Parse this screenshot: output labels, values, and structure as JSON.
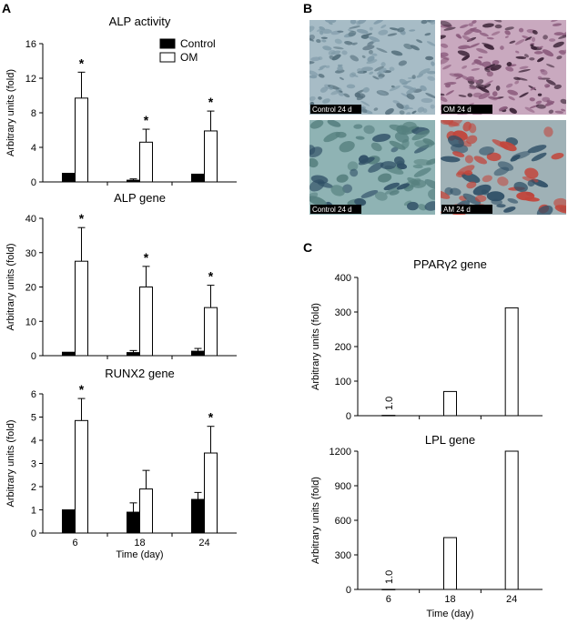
{
  "panels": {
    "a": "A",
    "b": "B",
    "c": "C"
  },
  "legend": {
    "control": "Control",
    "om": "OM"
  },
  "photos": [
    {
      "label": "Control 24 d",
      "base": "#a7bcc6",
      "cell": "#7f9aa8",
      "dot": "#556f7c"
    },
    {
      "label": "OM 24 d",
      "base": "#c9a9bf",
      "cell": "#8a5a7c",
      "dot": "#3a2236"
    },
    {
      "label": "Control 24 d",
      "base": "#8fb3b4",
      "cell": "#56807f",
      "dot": "#2f4f66"
    },
    {
      "label": "AM 24 d",
      "base": "#9fb1b6",
      "cell": "#c2463c",
      "dot": "#2f4f66"
    }
  ],
  "chart_data": [
    {
      "type": "bar",
      "title": "ALP activity",
      "ylabel": "Arbitrary units (fold)",
      "xlabel": "",
      "categories": [
        "6",
        "18",
        "24"
      ],
      "ylim": [
        0,
        16
      ],
      "yticks": [
        0,
        4,
        8,
        12,
        16
      ],
      "legend": "top-right",
      "series": [
        {
          "name": "Control",
          "values": [
            1.0,
            0.2,
            0.9
          ],
          "errors": [
            0,
            0.15,
            0
          ]
        },
        {
          "name": "OM",
          "values": [
            9.7,
            4.6,
            5.9
          ],
          "errors": [
            3.0,
            1.5,
            2.3
          ]
        }
      ],
      "significant": [
        true,
        true,
        true
      ]
    },
    {
      "type": "bar",
      "title": "ALP gene",
      "ylabel": "Arbitrary units (fold)",
      "xlabel": "",
      "categories": [
        "6",
        "18",
        "24"
      ],
      "ylim": [
        0,
        40
      ],
      "yticks": [
        0,
        10,
        20,
        30,
        40
      ],
      "series": [
        {
          "name": "Control",
          "values": [
            1.0,
            0.9,
            1.3
          ],
          "errors": [
            0,
            0.6,
            0.8
          ]
        },
        {
          "name": "OM",
          "values": [
            27.5,
            20.0,
            14.0
          ],
          "errors": [
            9.8,
            6.0,
            6.5
          ]
        }
      ],
      "significant": [
        true,
        true,
        true
      ]
    },
    {
      "type": "bar",
      "title": "RUNX2 gene",
      "ylabel": "Arbitrary units (fold)",
      "xlabel": "Time (day)",
      "categories": [
        "6",
        "18",
        "24"
      ],
      "ylim": [
        0,
        6
      ],
      "yticks": [
        0,
        1,
        2,
        3,
        4,
        5,
        6
      ],
      "series": [
        {
          "name": "Control",
          "values": [
            1.0,
            0.9,
            1.45
          ],
          "errors": [
            0,
            0.4,
            0.3
          ]
        },
        {
          "name": "OM",
          "values": [
            4.85,
            1.9,
            3.45
          ],
          "errors": [
            0.95,
            0.8,
            1.15
          ]
        }
      ],
      "significant": [
        true,
        false,
        true
      ]
    },
    {
      "type": "bar",
      "title": "PPARγ2 gene",
      "ylabel": "Arbitrary units (fold)",
      "xlabel": "",
      "categories": [
        "6",
        "18",
        "24"
      ],
      "ylim": [
        0,
        400
      ],
      "yticks": [
        0,
        100,
        200,
        300,
        400
      ],
      "series": [
        {
          "values": [
            1.0,
            70,
            312
          ],
          "data_labels": [
            "1.0",
            "",
            ""
          ]
        }
      ]
    },
    {
      "type": "bar",
      "title": "LPL gene",
      "ylabel": "Arbitrary units (fold)",
      "xlabel": "Time (day)",
      "categories": [
        "6",
        "18",
        "24"
      ],
      "ylim": [
        0,
        1200
      ],
      "yticks": [
        0,
        300,
        600,
        900,
        1200
      ],
      "series": [
        {
          "values": [
            1.0,
            450,
            1200
          ],
          "data_labels": [
            "1.0",
            "",
            ""
          ]
        }
      ]
    }
  ]
}
